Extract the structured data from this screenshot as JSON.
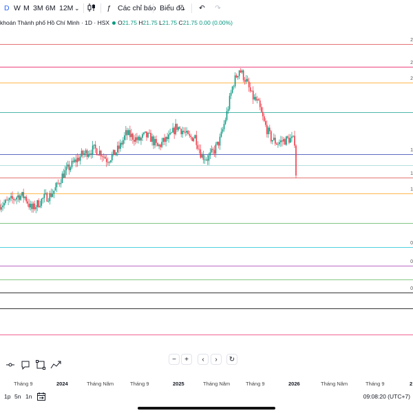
{
  "toolbar": {
    "intervals": [
      "D",
      "W",
      "M",
      "3M",
      "6M",
      "12M"
    ],
    "active_interval": "D",
    "indicators_label": "Các chỉ báo",
    "chart_label": "Biểu đồ"
  },
  "symbol": {
    "name": "khoán Thành phố Hồ Chí Minh · 1D · HSX",
    "ohlc": [
      {
        "k": "O",
        "v": "21.75"
      },
      {
        "k": "H",
        "v": "21.75"
      },
      {
        "k": "L",
        "v": "21.75"
      },
      {
        "k": "C",
        "v": "21.75"
      }
    ],
    "change": "0.00 (0.00%)"
  },
  "levels": [
    {
      "color": "#e57373",
      "label": "2"
    },
    {
      "color": "#ec407a",
      "label": "2"
    },
    {
      "color": "#ffb74d",
      "label": "2"
    },
    {
      "color": "#4db6ac",
      "label": ""
    },
    {
      "color": "#5c6bc0",
      "label": "1"
    },
    {
      "color": "#b2dfdb",
      "label": ""
    },
    {
      "color": "#e57373",
      "label": "1"
    },
    {
      "color": "#ffb74d",
      "label": "1"
    },
    {
      "color": "#81c784",
      "label": ""
    },
    {
      "color": "#4dd0e1",
      "label": "0"
    },
    {
      "color": "#ba68c8",
      "label": "0"
    },
    {
      "color": "#81c784",
      "label": ""
    },
    {
      "color": "#333333",
      "label": "0"
    },
    {
      "color": "#333333",
      "label": ""
    },
    {
      "color": "#f06292",
      "label": ""
    }
  ],
  "xaxis": [
    "Tháng 9",
    "2024",
    "Tháng Năm",
    "Tháng 9",
    "2025",
    "Tháng Năm",
    "Tháng 9",
    "2026",
    "Tháng Năm",
    "Tháng 9",
    "2"
  ],
  "status": {
    "ranges": [
      "1p",
      "5n",
      "1n"
    ],
    "time": "09:08:20 (UTC+7)"
  },
  "chart_data": {
    "type": "candlestick",
    "x_ticks": [
      "Tháng 9",
      "2024",
      "Tháng Năm",
      "Tháng 9",
      "2025",
      "Tháng Năm",
      "Tháng 9",
      "2026",
      "Tháng Năm",
      "Tháng 9"
    ],
    "trend_closes": [
      18.3,
      18.5,
      18.9,
      19.4,
      19.2,
      17.7,
      18.4,
      19.1,
      19.4,
      20.4,
      21.9,
      22.7,
      23.5,
      24.2,
      24.6,
      24.9,
      24.5,
      23.6,
      24.2,
      25.1,
      26.7,
      26.4,
      25.9,
      26.5,
      26.2,
      25.1,
      25.8,
      26.3,
      27.6,
      27.1,
      26.2,
      26.4,
      24.1,
      23.8,
      24.7,
      26.1,
      29.1,
      32.6,
      34.4,
      33.1,
      31.2,
      30.3,
      27.9,
      26.2,
      25.6,
      25.9,
      26.1,
      25.8
    ],
    "last_close": 21.75
  }
}
